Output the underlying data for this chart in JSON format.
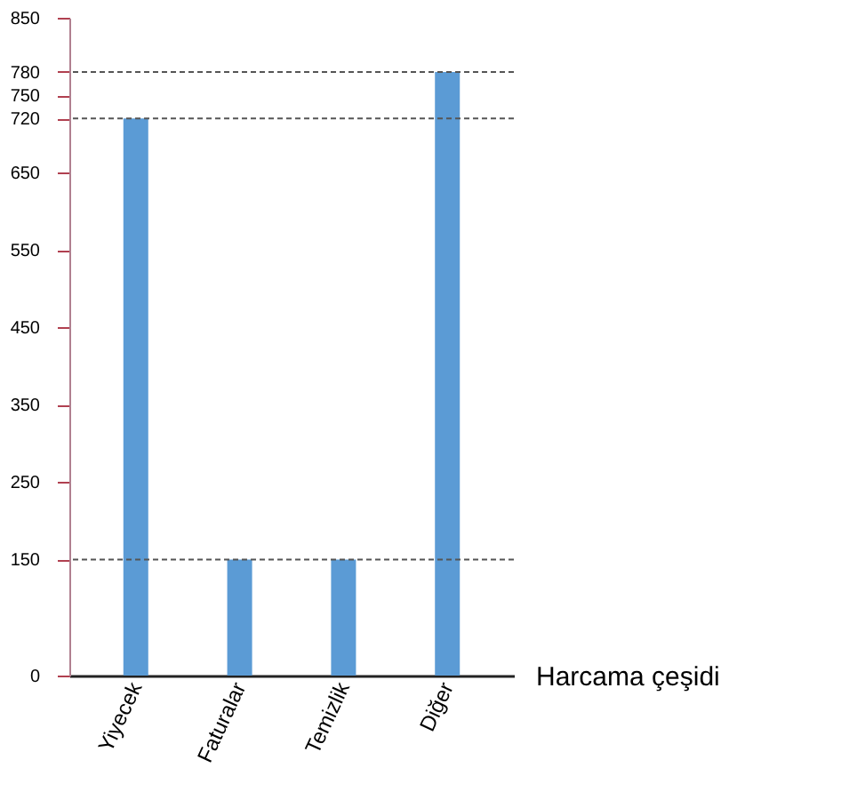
{
  "chart_data": {
    "type": "bar",
    "xlabel": "Harcama çeşidi",
    "categories": [
      "Yiyecek",
      "Faturalar",
      "Temizlik",
      "Diğer"
    ],
    "values": [
      720,
      150,
      150,
      780
    ],
    "color": "#5b9bd5",
    "ylim": [
      0,
      850
    ],
    "yticks": [
      0,
      150,
      250,
      350,
      450,
      550,
      650,
      720,
      750,
      780,
      850
    ],
    "ref_lines": [
      {
        "axis": "y",
        "value": 720,
        "line_style": "dashed",
        "color": "#555555"
      },
      {
        "axis": "y",
        "value": 780,
        "line_style": "dashed",
        "color": "#555555"
      },
      {
        "axis": "y",
        "value": 150,
        "line_style": "dashed",
        "color": "#555555"
      }
    ],
    "grid": false
  }
}
